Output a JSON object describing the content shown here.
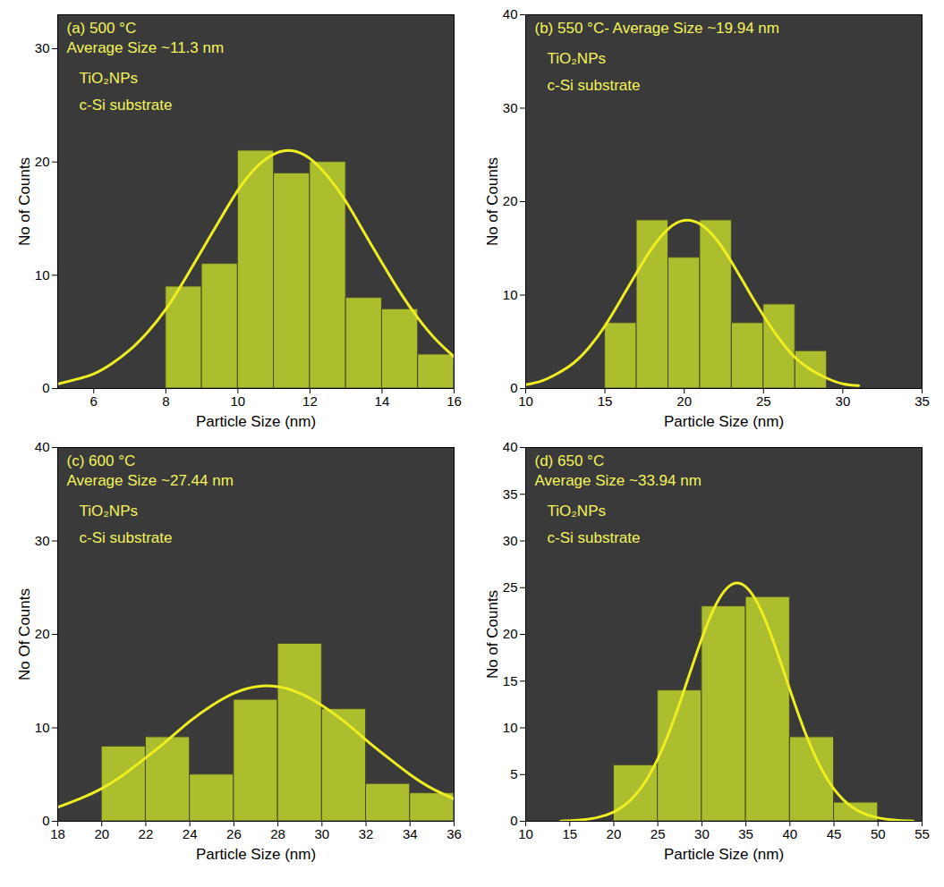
{
  "chart_data": [
    {
      "type": "histogram",
      "title": "(a) 500 °C",
      "subtitle": "Average Size ~11.3 nm",
      "annotations": [
        "TiO₂NPs",
        "c-Si substrate"
      ],
      "x_label": "Particle Size (nm)",
      "y_label": "No of Counts",
      "bins": [
        8,
        9,
        10,
        11,
        12,
        13,
        14,
        15,
        16
      ],
      "values": [
        9,
        11,
        21,
        19,
        20,
        8,
        7,
        3
      ],
      "color": "#b9cc2e",
      "fit_curve": {
        "type": "line",
        "color": "#eeee22",
        "x": [
          5,
          5.5,
          6,
          6.5,
          7,
          7.5,
          8,
          8.5,
          9,
          9.5,
          10,
          10.5,
          11,
          11.5,
          12,
          12.5,
          13,
          13.5,
          14,
          14.5,
          15,
          15.5,
          16
        ],
        "values": [
          0.4,
          0.8,
          1.3,
          2.2,
          3.4,
          5.0,
          7.0,
          9.5,
          12.2,
          14.9,
          17.5,
          19.5,
          20.7,
          21.0,
          20.3,
          18.7,
          16.5,
          13.8,
          11.1,
          8.5,
          6.2,
          4.3,
          2.8
        ]
      },
      "xlim": [
        5,
        16
      ],
      "xticks": [
        6,
        8,
        10,
        12,
        14,
        16
      ],
      "ylim": [
        0,
        33
      ],
      "yticks": [
        0,
        10,
        20,
        30
      ]
    },
    {
      "type": "histogram",
      "title": "(b) 550 °C- Average Size ~19.94 nm",
      "annotations": [
        "TiO₂NPs",
        "c-Si substrate"
      ],
      "x_label": "Particle Size (nm)",
      "y_label": "No of Counts",
      "bins": [
        15,
        17,
        19,
        21,
        23,
        25,
        27,
        29
      ],
      "values": [
        7,
        18,
        14,
        18,
        7,
        9,
        4
      ],
      "color": "#b9cc2e",
      "fit_curve": {
        "type": "line",
        "color": "#eeee22",
        "x": [
          10,
          11,
          12,
          13,
          14,
          15,
          16,
          17,
          18,
          19,
          20,
          21,
          22,
          23,
          24,
          25,
          26,
          27,
          28,
          29,
          30,
          31
        ],
        "values": [
          0.4,
          0.8,
          1.6,
          2.7,
          4.4,
          6.7,
          9.5,
          12.4,
          15.1,
          17.1,
          18.0,
          17.6,
          16.0,
          13.5,
          10.6,
          7.8,
          5.3,
          3.3,
          2.0,
          1.1,
          0.5,
          0.3
        ]
      },
      "xlim": [
        10,
        35
      ],
      "xticks": [
        10,
        15,
        20,
        25,
        30,
        35
      ],
      "ylim": [
        0,
        40
      ],
      "yticks": [
        0,
        10,
        20,
        30,
        40
      ]
    },
    {
      "type": "histogram",
      "title": "(c) 600 °C",
      "subtitle": "Average Size ~27.44 nm",
      "annotations": [
        "TiO₂NPs",
        "c-Si substrate"
      ],
      "x_label": "Particle Size (nm)",
      "y_label": "No Of Counts",
      "bins": [
        20,
        22,
        24,
        26,
        28,
        30,
        32,
        34,
        36
      ],
      "values": [
        8,
        9,
        5,
        13,
        19,
        12,
        4,
        3
      ],
      "color": "#b9cc2e",
      "fit_curve": {
        "type": "line",
        "color": "#eeee22",
        "x": [
          18,
          19,
          20,
          21,
          22,
          23,
          24,
          25,
          26,
          27,
          28,
          29,
          30,
          31,
          32,
          33,
          34,
          35,
          36
        ],
        "values": [
          1.5,
          2.4,
          3.5,
          5.0,
          6.8,
          8.7,
          10.7,
          12.4,
          13.7,
          14.4,
          14.4,
          13.7,
          12.4,
          10.7,
          8.7,
          6.8,
          5.0,
          3.5,
          2.4
        ]
      },
      "xlim": [
        18,
        36
      ],
      "xticks": [
        18,
        20,
        22,
        24,
        26,
        28,
        30,
        32,
        34,
        36
      ],
      "ylim": [
        0,
        40
      ],
      "yticks": [
        0,
        10,
        20,
        30,
        40
      ]
    },
    {
      "type": "histogram",
      "title": "(d) 650 °C",
      "subtitle": "Average Size ~33.94 nm",
      "annotations": [
        "TiO₂NPs",
        "c-Si substrate"
      ],
      "x_label": "Particle Size (nm)",
      "y_label": "No of Counts",
      "bins": [
        20,
        25,
        30,
        35,
        40,
        45,
        50
      ],
      "values": [
        6,
        14,
        23,
        24,
        9,
        2
      ],
      "color": "#b9cc2e",
      "fit_curve": {
        "type": "line",
        "color": "#eeee22",
        "x": [
          14,
          16,
          18,
          20,
          22,
          24,
          26,
          28,
          30,
          32,
          34,
          36,
          38,
          40,
          42,
          44,
          46,
          48,
          50,
          52,
          54
        ],
        "values": [
          0.03,
          0.12,
          0.37,
          1.0,
          2.36,
          4.88,
          8.85,
          14.07,
          19.58,
          23.87,
          25.5,
          23.87,
          19.58,
          14.07,
          8.85,
          4.88,
          2.36,
          1.0,
          0.37,
          0.12,
          0.03
        ]
      },
      "xlim": [
        10,
        55
      ],
      "xticks": [
        10,
        15,
        20,
        25,
        30,
        35,
        40,
        45,
        50,
        55
      ],
      "ylim": [
        0,
        40
      ],
      "yticks": [
        0,
        5,
        10,
        15,
        20,
        25,
        30,
        35,
        40
      ]
    }
  ]
}
